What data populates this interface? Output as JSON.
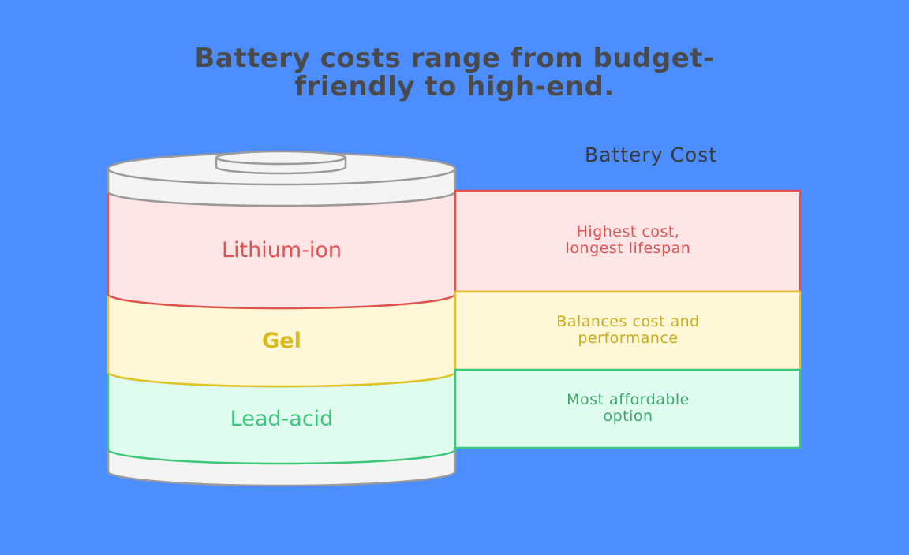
{
  "title": {
    "line1": "Battery costs range from budget-",
    "line2": "friendly to high-end."
  },
  "column_header": "Battery Cost",
  "tiers": [
    {
      "name": "Lithium-ion",
      "description_line1": "Highest cost,",
      "description_line2": "longest lifespan",
      "stroke": "#e05252",
      "fill": "#ffe6e6",
      "text_color": "#e05252"
    },
    {
      "name": "Gel",
      "description_line1": "Balances cost and",
      "description_line2": "performance",
      "stroke": "#e2c322",
      "fill": "#fff8d8",
      "text_color": "#c8ac1a"
    },
    {
      "name": "Lead-acid",
      "description_line1": "Most affordable",
      "description_line2": "option",
      "stroke": "#3ec77a",
      "fill": "#e0fbef",
      "text_color": "#3aa86a"
    }
  ],
  "colors": {
    "background": "#4c8dff",
    "title": "#4a4a4a",
    "battery_casing": "#f4f4f4",
    "battery_outline": "#9a9a9a"
  }
}
